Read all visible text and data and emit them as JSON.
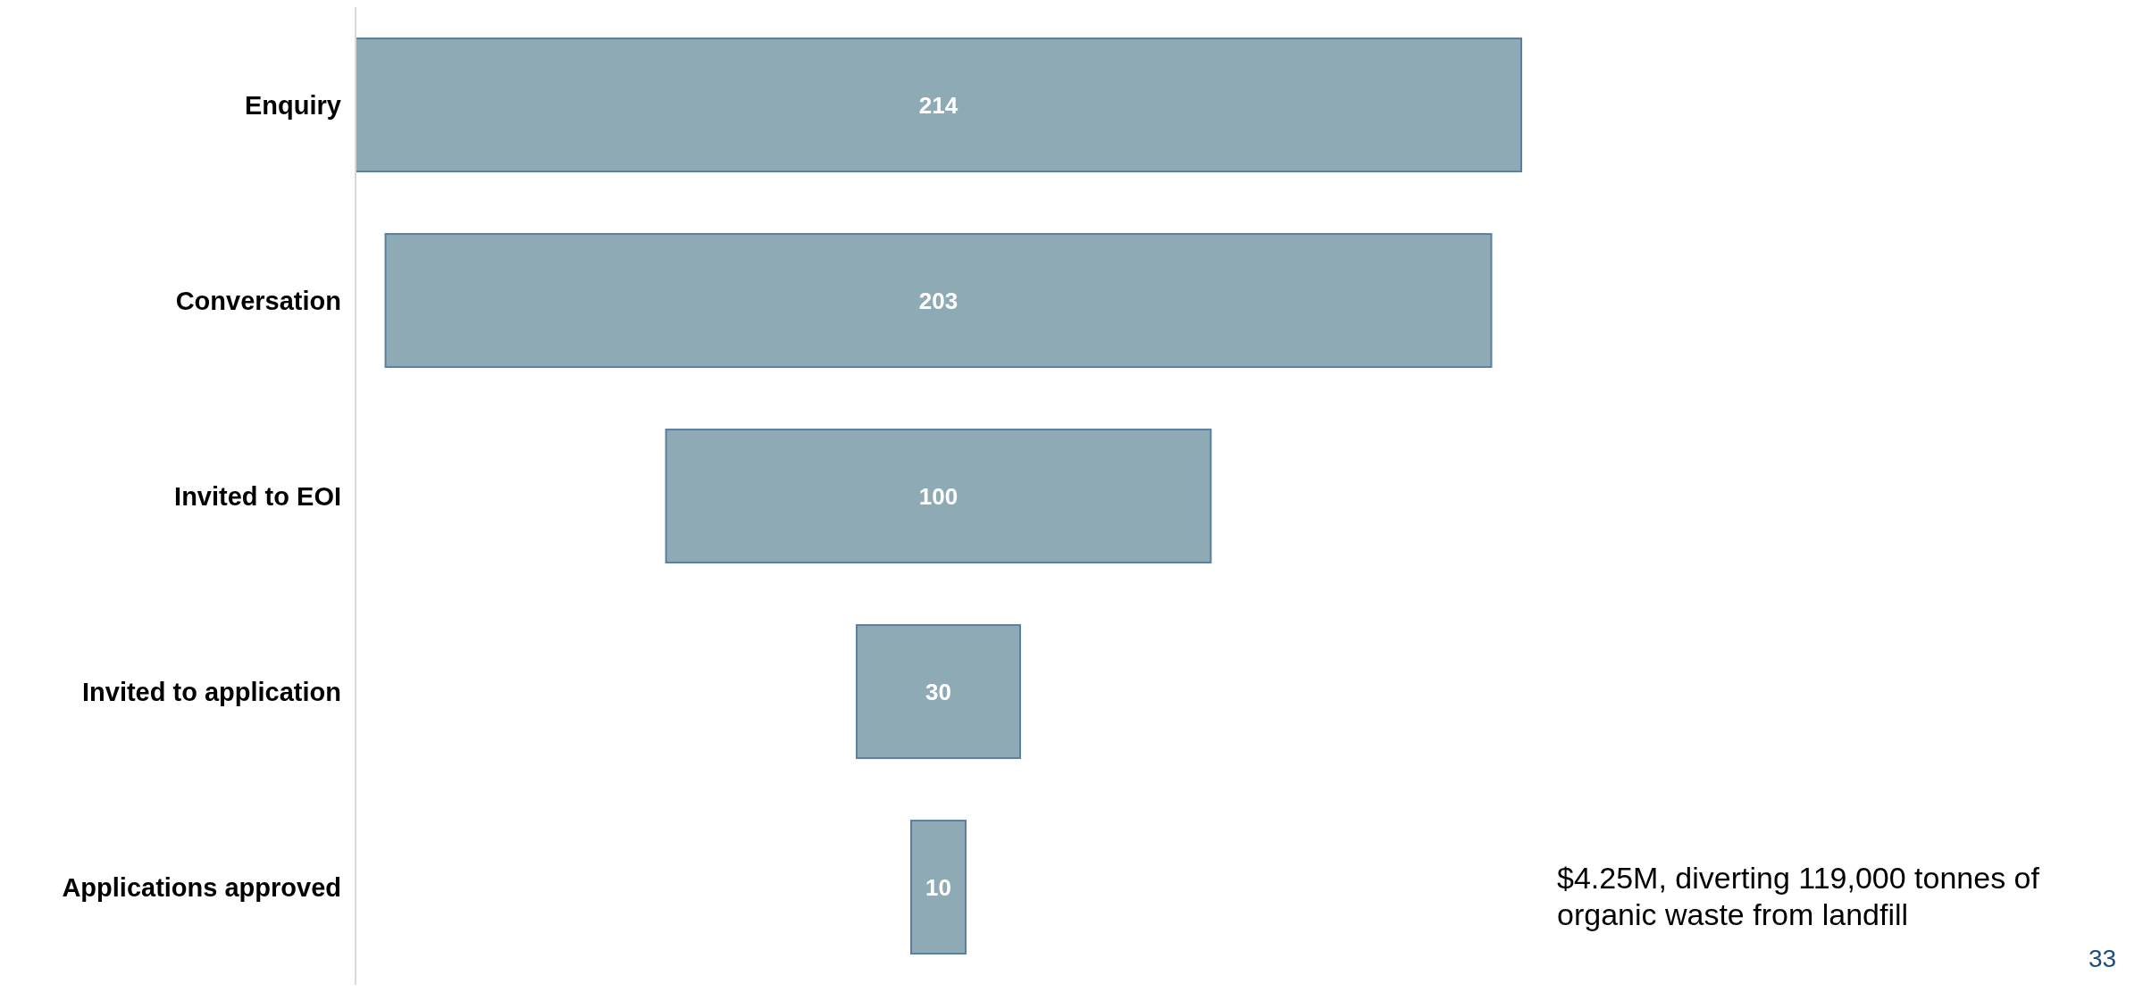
{
  "chart_data": {
    "type": "other",
    "categories": [
      "Enquiry",
      "Conversation",
      "Invited to EOI",
      "Invited to application",
      "Applications approved"
    ],
    "values": [
      214,
      203,
      100,
      30,
      10
    ],
    "color": "#8eaab5",
    "data_labels": true,
    "annotations": [
      "$4.25M, diverting 119,000 tonnes of organic waste from landfill",
      "33"
    ]
  }
}
